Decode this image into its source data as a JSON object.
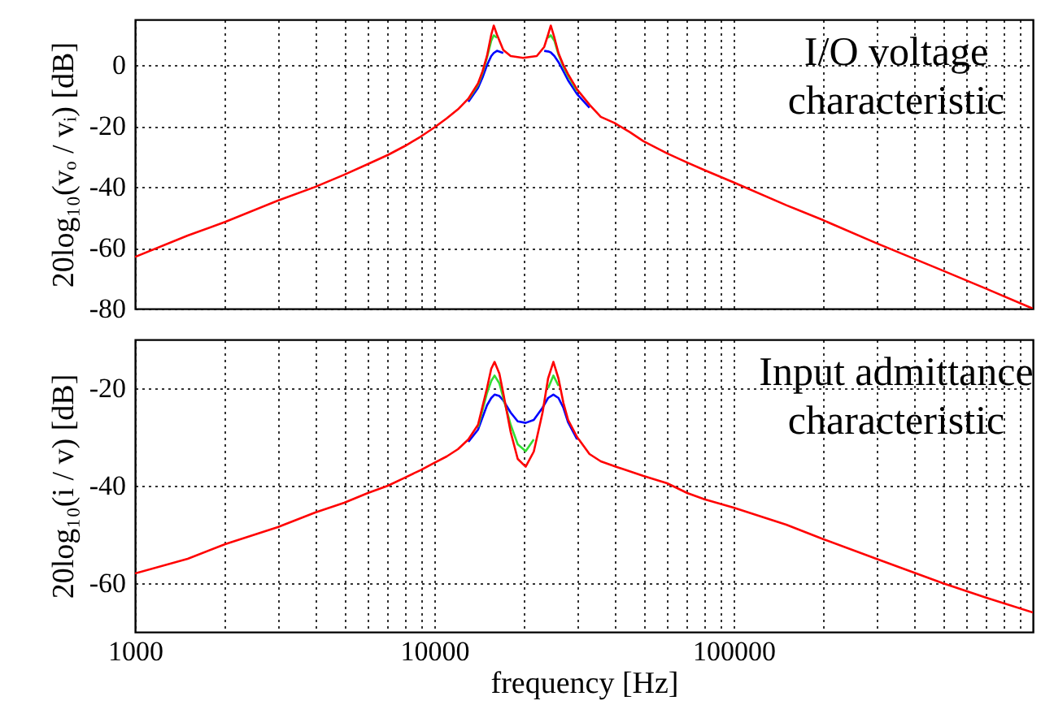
{
  "chart_data": [
    {
      "type": "line",
      "log": "x",
      "ylabel": "20log₁₀(vₒ / vᵢ) [dB]",
      "annotations": [
        "I/O voltage characteristic"
      ],
      "tick_labels": "y",
      "grid": true,
      "xlim": [
        1000,
        1000000
      ],
      "ylim": [
        -80,
        15
      ],
      "yticks": [
        -80,
        -60,
        -40,
        -20,
        0
      ],
      "xticks": [
        1000,
        {
          "value": 2000,
          "label": null
        },
        {
          "value": 3000,
          "label": null
        },
        {
          "value": 4000,
          "label": null
        },
        {
          "value": 5000,
          "label": null
        },
        {
          "value": 6000,
          "label": null
        },
        {
          "value": 7000,
          "label": null
        },
        {
          "value": 8000,
          "label": null
        },
        {
          "value": 9000,
          "label": null
        },
        10000,
        {
          "value": 20000,
          "label": null
        },
        {
          "value": 30000,
          "label": null
        },
        {
          "value": 40000,
          "label": null
        },
        {
          "value": 50000,
          "label": null
        },
        {
          "value": 60000,
          "label": null
        },
        {
          "value": 70000,
          "label": null
        },
        {
          "value": 80000,
          "label": null
        },
        {
          "value": 90000,
          "label": null
        },
        100000,
        {
          "value": 200000,
          "label": null
        },
        {
          "value": 300000,
          "label": null
        },
        {
          "value": 400000,
          "label": null
        },
        {
          "value": 500000,
          "label": null
        },
        {
          "value": 600000,
          "label": null
        },
        {
          "value": 700000,
          "label": null
        },
        {
          "value": 800000,
          "label": null
        },
        {
          "value": 900000,
          "label": null
        }
      ],
      "x": [
        1000,
        1500,
        2000,
        3000,
        4000,
        5000,
        6000,
        7000,
        8000,
        9000,
        10000,
        11000,
        12000,
        13000,
        14000,
        14500,
        15000,
        15500,
        15800,
        16200,
        17000,
        18000,
        19800,
        22000,
        23300,
        24000,
        24500,
        25200,
        26000,
        27000,
        28000,
        30000,
        33000,
        36000,
        40000,
        45000,
        50000,
        60000,
        70000,
        80000,
        100000,
        150000,
        200000,
        300000,
        500000,
        700000,
        1000000
      ],
      "series": [
        {
          "color": "#0000ff",
          "values": [
            null,
            null,
            null,
            null,
            null,
            null,
            null,
            null,
            null,
            null,
            null,
            null,
            null,
            -12,
            -7.5,
            -4,
            0,
            3,
            4,
            4.7,
            4,
            null,
            null,
            null,
            4.7,
            4.5,
            4.2,
            3,
            1,
            -2,
            -5,
            -9.5,
            -14,
            null,
            null,
            null,
            null,
            null,
            null,
            null,
            null,
            null,
            null,
            null,
            null,
            null,
            null
          ]
        },
        {
          "color": "#33dd33",
          "values": [
            null,
            null,
            null,
            null,
            null,
            null,
            null,
            null,
            null,
            null,
            null,
            null,
            null,
            -11.3,
            -6.5,
            -2.5,
            2.5,
            8,
            9.8,
            9,
            null,
            null,
            null,
            null,
            null,
            9,
            9.8,
            8,
            3.5,
            -0.5,
            -3.5,
            -8.5,
            null,
            null,
            null,
            null,
            null,
            null,
            null,
            null,
            null,
            null,
            null,
            null,
            null,
            null,
            null
          ]
        },
        {
          "color": "#ff0000",
          "values": [
            -63,
            -56,
            -51.5,
            -44.5,
            -40,
            -36,
            -32.5,
            -29.5,
            -26.5,
            -23.5,
            -20.5,
            -17.5,
            -14.5,
            -11,
            -6,
            -2,
            3,
            10,
            13,
            10,
            5,
            3,
            2.4,
            3,
            6,
            10,
            13,
            9,
            4,
            0,
            -3,
            -8,
            -13,
            -17,
            -19,
            -22,
            -25,
            -29,
            -32,
            -34.5,
            -38.5,
            -46,
            -51,
            -58.5,
            -67.5,
            -73.5,
            -80
          ]
        }
      ]
    },
    {
      "type": "line",
      "log": "x",
      "xlabel": "frequency [Hz]",
      "ylabel": "20log₁₀(i / v) [dB]",
      "annotations": [
        "Input admittance characteristic"
      ],
      "grid": true,
      "xlim": [
        1000,
        1000000
      ],
      "ylim": [
        -70,
        -10
      ],
      "yticks": [
        -60,
        -40,
        -20
      ],
      "xticks": [
        1000,
        {
          "value": 2000,
          "label": null
        },
        {
          "value": 3000,
          "label": null
        },
        {
          "value": 4000,
          "label": null
        },
        {
          "value": 5000,
          "label": null
        },
        {
          "value": 6000,
          "label": null
        },
        {
          "value": 7000,
          "label": null
        },
        {
          "value": 8000,
          "label": null
        },
        {
          "value": 9000,
          "label": null
        },
        10000,
        {
          "value": 20000,
          "label": null
        },
        {
          "value": 30000,
          "label": null
        },
        {
          "value": 40000,
          "label": null
        },
        {
          "value": 50000,
          "label": null
        },
        {
          "value": 60000,
          "label": null
        },
        {
          "value": 70000,
          "label": null
        },
        {
          "value": 80000,
          "label": null
        },
        {
          "value": 90000,
          "label": null
        },
        100000,
        {
          "value": 200000,
          "label": null
        },
        {
          "value": 300000,
          "label": null
        },
        {
          "value": 400000,
          "label": null
        },
        {
          "value": 500000,
          "label": null
        },
        {
          "value": 600000,
          "label": null
        },
        {
          "value": 700000,
          "label": null
        },
        {
          "value": 800000,
          "label": null
        },
        {
          "value": 900000,
          "label": null
        }
      ],
      "x": [
        1000,
        1500,
        2000,
        3000,
        4000,
        5000,
        6000,
        7000,
        8000,
        9000,
        10000,
        11000,
        12000,
        13000,
        14000,
        15000,
        15500,
        15900,
        16500,
        17000,
        18000,
        19000,
        20200,
        21500,
        23000,
        24000,
        25000,
        26000,
        27000,
        28000,
        30000,
        33000,
        36000,
        40000,
        50000,
        60000,
        70000,
        80000,
        100000,
        150000,
        200000,
        300000,
        500000,
        700000,
        1000000
      ],
      "series": [
        {
          "color": "#0000ff",
          "values": [
            null,
            null,
            null,
            null,
            null,
            null,
            null,
            null,
            null,
            null,
            null,
            null,
            null,
            -31,
            -28.5,
            -23.5,
            -22,
            -21.3,
            -21.6,
            -22.5,
            -25,
            -26.8,
            -27.1,
            -26.5,
            -24,
            -22,
            -21.3,
            -22,
            -24,
            -27,
            -30.5,
            null,
            null,
            null,
            null,
            null,
            null,
            null,
            null,
            null,
            null,
            null,
            null,
            null,
            null
          ]
        },
        {
          "color": "#33dd33",
          "values": [
            null,
            null,
            null,
            null,
            null,
            null,
            null,
            null,
            null,
            null,
            null,
            null,
            null,
            null,
            -28,
            -21,
            -18.5,
            -17.4,
            -19,
            -22,
            -27.5,
            -31.5,
            -32.9,
            -30.5,
            null,
            -20,
            -17.4,
            -19.5,
            null,
            null,
            null,
            null,
            null,
            null,
            null,
            null,
            null,
            null,
            null,
            null,
            null,
            null,
            null,
            null,
            null
          ]
        },
        {
          "color": "#ff0000",
          "values": [
            -58,
            -55,
            -52,
            -48.5,
            -45.5,
            -43.5,
            -41.5,
            -40,
            -38.3,
            -36.8,
            -35.3,
            -34,
            -32.5,
            -30.5,
            -27.5,
            -20,
            -16,
            -14.6,
            -17,
            -21,
            -29,
            -34.5,
            -36.1,
            -33,
            -25,
            -18,
            -14.6,
            -18,
            -23,
            -26.5,
            -30,
            -33.5,
            -35,
            -36,
            -38,
            -39.5,
            -41.5,
            -42.8,
            -44.5,
            -48,
            -51,
            -55,
            -60,
            -63,
            -66
          ]
        }
      ]
    }
  ]
}
